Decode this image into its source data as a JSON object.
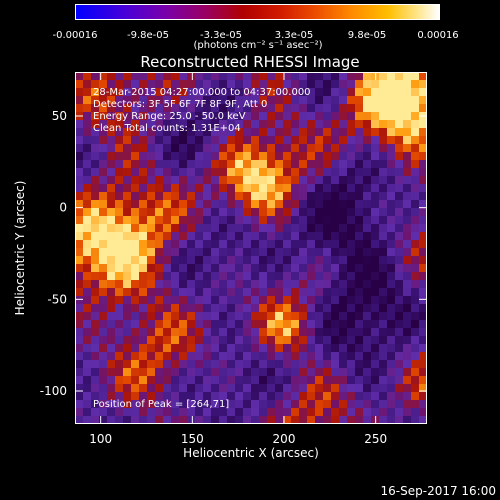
{
  "colorbar": {
    "ticks": [
      "-0.00016",
      "-9.8e-05",
      "-3.3e-05",
      "3.3e-05",
      "9.8e-05",
      "0.00016"
    ],
    "unit": "(photons cm⁻² s⁻¹ asec⁻²)"
  },
  "chart_data": {
    "type": "heatmap",
    "title": "Reconstructed RHESSI Image",
    "xlabel": "Heliocentric X (arcsec)",
    "ylabel": "Heliocentric Y (arcsec)",
    "xlim": [
      86,
      278
    ],
    "ylim": [
      -118,
      74
    ],
    "xticks": [
      "100",
      "150",
      "200",
      "250"
    ],
    "yticks": [
      "50",
      "0",
      "-50",
      "-100"
    ],
    "color_range": [
      -0.00016,
      0.00016
    ],
    "annotations": [
      "28-Mar-2015 04:27:00.000 to 04:37:00.000",
      "Detectors: 3F 5F 6F 7F 8F 9F, Att 0",
      "Energy Range: 25.0 - 50.0 keV",
      "Clean    Total counts: 1.31E+04"
    ],
    "peak_label": "Position of Peak = [264,71]",
    "peak": [
      264,
      71
    ]
  },
  "footer": {
    "date": "16-Sep-2017 16:00"
  }
}
